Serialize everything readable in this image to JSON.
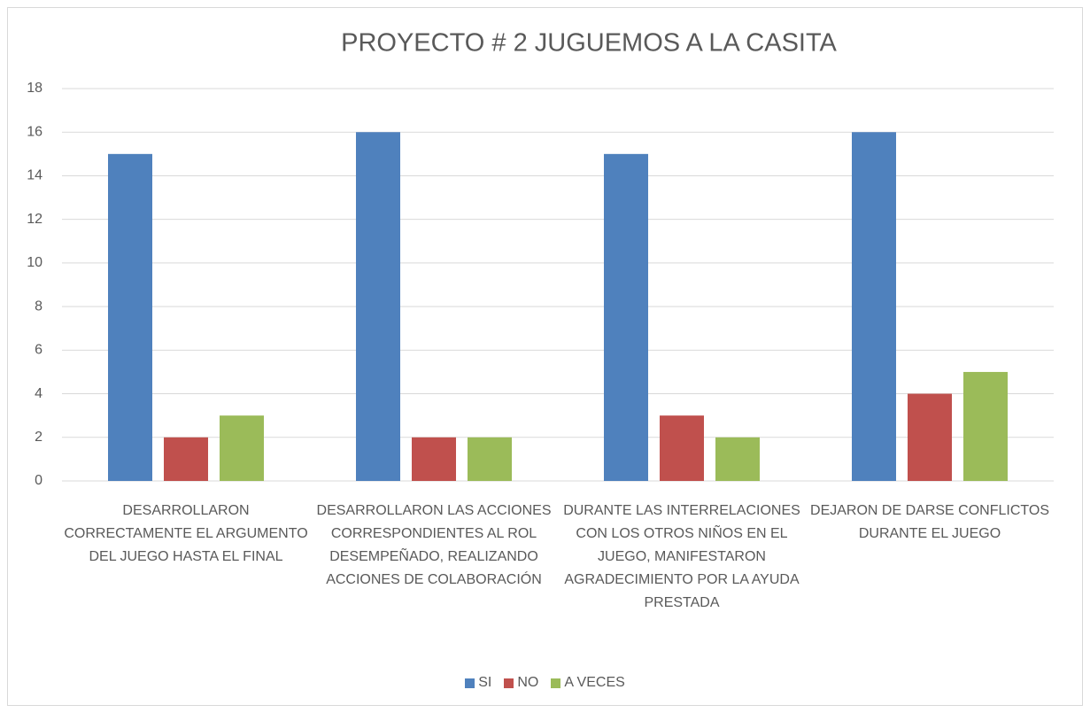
{
  "chart_data": {
    "type": "bar",
    "title": "PROYECTO # 2 JUGUEMOS A LA CASITA",
    "categories": [
      "DESARROLLARON CORRECTAMENTE EL ARGUMENTO DEL JUEGO HASTA EL FINAL",
      "DESARROLLARON LAS ACCIONES CORRESPONDIENTES AL ROL DESEMPEÑADO, REALIZANDO ACCIONES DE COLABORACIÓN",
      "DURANTE LAS INTERRELACIONES CON LOS OTROS NIÑOS EN EL JUEGO, MANIFESTARON AGRADECIMIENTO POR LA AYUDA PRESTADA",
      "DEJARON DE DARSE CONFLICTOS DURANTE EL JUEGO"
    ],
    "series": [
      {
        "name": "SI",
        "color": "#4f81bd",
        "values": [
          15,
          16,
          15,
          16
        ]
      },
      {
        "name": "NO",
        "color": "#c0504d",
        "values": [
          2,
          2,
          3,
          4
        ]
      },
      {
        "name": "A VECES",
        "color": "#9bbb59",
        "values": [
          3,
          2,
          2,
          5
        ]
      }
    ],
    "ylim": [
      0,
      18
    ],
    "yticks": [
      0,
      2,
      4,
      6,
      8,
      10,
      12,
      14,
      16,
      18
    ],
    "grid": true,
    "legend": "bottom"
  }
}
